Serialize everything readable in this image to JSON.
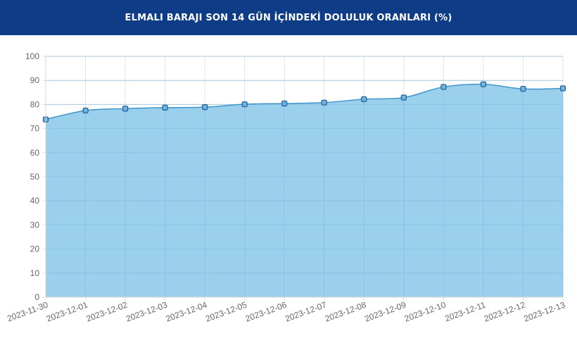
{
  "header": {
    "title": "ELMALI BARAJI SON 14 GÜN İÇİNDEKİ DOLULUK ORANLARI (%)"
  },
  "colors": {
    "header_bg": "#0e3c86",
    "header_text": "#ffffff",
    "area_fill": "#9bd0ed",
    "line": "#3f95c8",
    "point_fill": "#6fb3df",
    "point_stroke": "#1f5f99",
    "grid": "#e3e3e3",
    "tick_text": "#666666"
  },
  "chart_data": {
    "type": "area",
    "x": [
      "2023-11-30",
      "2023-12-01",
      "2023-12-02",
      "2023-12-03",
      "2023-12-04",
      "2023-12-05",
      "2023-12-06",
      "2023-12-07",
      "2023-12-08",
      "2023-12-09",
      "2023-12-10",
      "2023-12-11",
      "2023-12-12",
      "2023-12-13"
    ],
    "series": [
      {
        "values": [
          73.8,
          77.5,
          78.3,
          78.7,
          78.9,
          80.1,
          80.4,
          80.8,
          82.2,
          82.9,
          87.3,
          88.4,
          86.5,
          86.7
        ]
      }
    ],
    "yticks": [
      "0",
      "10",
      "20",
      "30",
      "40",
      "50",
      "60",
      "70",
      "80",
      "90",
      "100"
    ],
    "ylim": [
      0,
      100
    ],
    "grid": true,
    "legend": "none",
    "smooth": true
  }
}
